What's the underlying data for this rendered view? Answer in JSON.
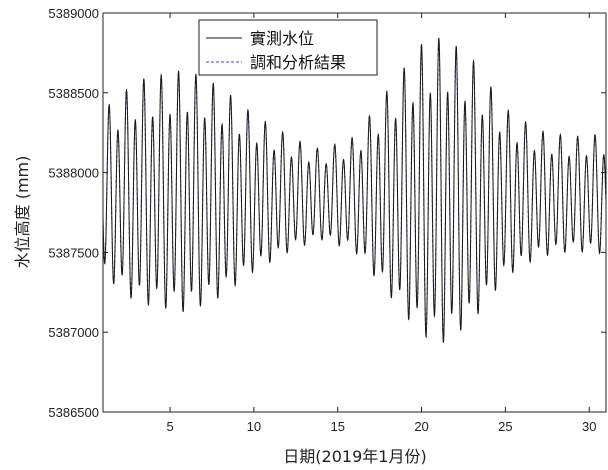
{
  "chart_data": {
    "type": "line",
    "title": "",
    "xlabel": "日期(2019年1月份)",
    "ylabel": "水位高度 (mm)",
    "xlim": [
      1,
      31
    ],
    "ylim": [
      5386500,
      5389000
    ],
    "x_ticks": [
      5,
      10,
      15,
      20,
      25,
      30
    ],
    "y_ticks": [
      5386500,
      5387000,
      5387500,
      5388000,
      5388500,
      5389000
    ],
    "x_tick_labels": [
      "5",
      "10",
      "15",
      "20",
      "25",
      "30"
    ],
    "y_tick_labels": [
      "5386500",
      "5387000",
      "5387500",
      "5388000",
      "5388500",
      "5389000"
    ],
    "grid": false,
    "legend_position": "top-center",
    "series": [
      {
        "name": "實測水位",
        "color": "#1a1a1a",
        "style": "solid"
      },
      {
        "name": "調和分析結果",
        "color": "#3b4ea8",
        "style": "dashed"
      }
    ],
    "waveform_note_values": {
      "period_days": 0.5175,
      "mean_level": 5387850,
      "max_peak": 5388780,
      "min_trough": 5386700
    }
  }
}
